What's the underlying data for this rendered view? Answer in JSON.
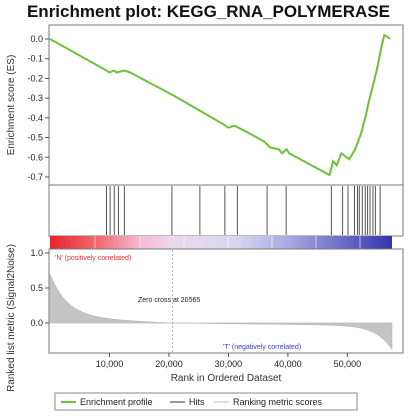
{
  "chart_data": {
    "type": "line",
    "title": "Enrichment plot: KEGG_RNA_POLYMERASE",
    "es_panel": {
      "ylabel": "Enrichment score (ES)",
      "yticks": [
        "0.0",
        "-0.1",
        "-0.2",
        "-0.3",
        "-0.4",
        "-0.5",
        "-0.6",
        "-0.7"
      ],
      "ylim": [
        -0.75,
        0.03
      ],
      "series_color": "#6cc13a",
      "points": [
        [
          0,
          0.0
        ],
        [
          9500,
          -0.16
        ],
        [
          10000,
          -0.17
        ],
        [
          10800,
          -0.16
        ],
        [
          11200,
          -0.17
        ],
        [
          12500,
          -0.16
        ],
        [
          13500,
          -0.17
        ],
        [
          21000,
          -0.29
        ],
        [
          25000,
          -0.36
        ],
        [
          29000,
          -0.43
        ],
        [
          30000,
          -0.45
        ],
        [
          31000,
          -0.44
        ],
        [
          33000,
          -0.47
        ],
        [
          36000,
          -0.52
        ],
        [
          37000,
          -0.55
        ],
        [
          38500,
          -0.56
        ],
        [
          39000,
          -0.58
        ],
        [
          39800,
          -0.56
        ],
        [
          40200,
          -0.58
        ],
        [
          47000,
          -0.69
        ],
        [
          47600,
          -0.62
        ],
        [
          48200,
          -0.64
        ],
        [
          49000,
          -0.58
        ],
        [
          50300,
          -0.61
        ],
        [
          51300,
          -0.56
        ],
        [
          51800,
          -0.52
        ],
        [
          52300,
          -0.48
        ],
        [
          52700,
          -0.43
        ],
        [
          53100,
          -0.39
        ],
        [
          53500,
          -0.33
        ],
        [
          54000,
          -0.27
        ],
        [
          54500,
          -0.21
        ],
        [
          55000,
          -0.15
        ],
        [
          55400,
          -0.09
        ],
        [
          55800,
          -0.03
        ],
        [
          56200,
          0.02
        ],
        [
          56800,
          0.01
        ],
        [
          57200,
          0.0
        ]
      ]
    },
    "hits": [
      9500,
      10100,
      10800,
      11500,
      12500,
      20500,
      25200,
      29400,
      31500,
      36500,
      39700,
      47300,
      49200,
      50100,
      51200,
      51700,
      52000,
      52500,
      53000,
      53400,
      53800,
      54300,
      54700,
      55500
    ],
    "metric_panel": {
      "ylabel": "Ranked list metric (Signal2Noise)",
      "yticks": [
        "1.0",
        "0.5",
        "0.0"
      ],
      "ylim": [
        -0.5,
        1.0
      ],
      "annotation_pos": "'N' (positively correlated)",
      "annotation_neg": "'T' (negatively correlated)",
      "zero_cross_text": "Zero cross at 20565",
      "zero_cross": 20565
    },
    "x": {
      "label": "Rank in Ordered Dataset",
      "ticks": [
        10000,
        20000,
        30000,
        40000,
        50000
      ],
      "tick_labels": [
        "10,000",
        "20,000",
        "30,000",
        "40,000",
        "50,000"
      ],
      "range": [
        0,
        57500
      ]
    },
    "legend": {
      "items": [
        {
          "label": "Enrichment profile",
          "color": "#6cc13a"
        },
        {
          "label": "Hits",
          "color": "#333333"
        },
        {
          "label": "Ranking metric scores",
          "color": "#bbbbbb"
        }
      ],
      "placement": "bottom"
    }
  }
}
